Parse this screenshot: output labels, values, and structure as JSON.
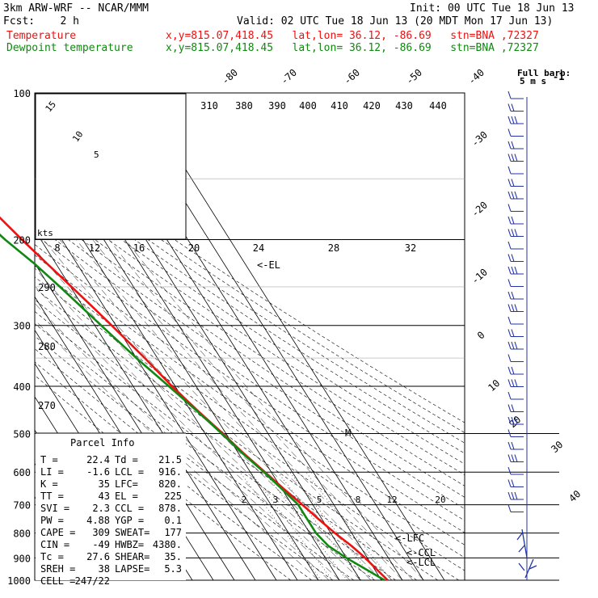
{
  "header": {
    "model": "3km ARW-WRF -- NCAR/MMM",
    "init": "Init: 00 UTC Tue 18 Jun 13",
    "fcst": "Fcst:    2 h",
    "valid": "Valid: 02 UTC Tue 18 Jun 13 (20 MDT Mon 17 Jun 13)",
    "temp_line": "Temperature",
    "temp_loc": "x,y=815.07,418.45   lat,lon= 36.12, -86.69   stn=BNA ,72327",
    "dew_line": "Dewpoint temperature",
    "dew_loc": "x,y=815.07,418.45   lat,lon= 36.12, -86.69   stn=BNA ,72327",
    "barb_label_1": "Full barb:",
    "barb_label_2": "5 m s",
    "barb_label_exp": "-1"
  },
  "colors": {
    "temperature": "#ee1111",
    "dewpoint": "#118811",
    "parcel_text": "#1a2fa0",
    "barbs": "#2233aa",
    "grid": "#000000"
  },
  "chart_data": {
    "type": "line",
    "title": "",
    "y_axis": {
      "label": "",
      "scale": "log-pressure",
      "ticks": [
        "100",
        "200",
        "300",
        "400",
        "500",
        "600",
        "700",
        "800",
        "900",
        "1000"
      ],
      "range": [
        1000,
        100
      ]
    },
    "isotherm_labels": [
      "-80",
      "-70",
      "-60",
      "-50",
      "-40",
      "-30",
      "-20",
      "-10",
      "0",
      "10",
      "20",
      "30",
      "40"
    ],
    "theta_e_labels": [
      "310",
      "380",
      "390",
      "400",
      "410",
      "420",
      "430",
      "440"
    ],
    "dry_adiabat_labels": [
      "290",
      "280",
      "270"
    ],
    "mixing_ratio_labels": [
      "2",
      "3",
      "5",
      "8",
      "12",
      "20"
    ],
    "hodograph": {
      "kts_label": "kts",
      "ring_labels": [
        "5",
        "10",
        "15"
      ],
      "speed_ticks": [
        "8",
        "12",
        "16",
        "20",
        "24",
        "28",
        "32"
      ]
    },
    "series": [
      {
        "name": "Temperature",
        "points": [
          [
            1000,
            23
          ],
          [
            950,
            21
          ],
          [
            900,
            19
          ],
          [
            850,
            16
          ],
          [
            800,
            12
          ],
          [
            750,
            8.5
          ],
          [
            700,
            5
          ],
          [
            650,
            1
          ],
          [
            600,
            -3
          ],
          [
            550,
            -7.5
          ],
          [
            500,
            -11.5
          ],
          [
            450,
            -16.5
          ],
          [
            400,
            -21.5
          ],
          [
            350,
            -26
          ],
          [
            300,
            -32
          ],
          [
            275,
            -35.5
          ],
          [
            250,
            -39.5
          ],
          [
            225,
            -44
          ],
          [
            200,
            -49
          ],
          [
            175,
            -54
          ],
          [
            150,
            -60
          ],
          [
            140,
            -62
          ],
          [
            125,
            -64
          ],
          [
            110,
            -64.5
          ],
          [
            100,
            -65
          ]
        ]
      },
      {
        "name": "Dewpoint temperature",
        "points": [
          [
            1000,
            21.5
          ],
          [
            950,
            16
          ],
          [
            900,
            10
          ],
          [
            850,
            5
          ],
          [
            800,
            3
          ],
          [
            750,
            3
          ],
          [
            700,
            3
          ],
          [
            650,
            0
          ],
          [
            600,
            -3.5
          ],
          [
            550,
            -8
          ],
          [
            500,
            -12
          ],
          [
            450,
            -17
          ],
          [
            400,
            -23
          ],
          [
            350,
            -30
          ],
          [
            300,
            -37
          ],
          [
            250,
            -45
          ],
          [
            225,
            -50
          ],
          [
            200,
            -57
          ],
          [
            175,
            -63
          ],
          [
            150,
            -69
          ],
          [
            125,
            -75
          ],
          [
            100,
            -81
          ]
        ]
      }
    ],
    "annotations": [
      "<-EL",
      "<-LFC",
      "<-CCL",
      "<-LCL",
      "M"
    ]
  },
  "parcel_info": {
    "title": "Parcel Info",
    "rows": [
      [
        "T  =",
        "22.4",
        "Td =",
        "21.5"
      ],
      [
        "LI =",
        "-1.6",
        "LCL =",
        "916."
      ],
      [
        "K  =",
        "35",
        "LFC=",
        "820."
      ],
      [
        "TT =",
        "43",
        "EL =",
        "225"
      ],
      [
        "SVI =",
        "2.3",
        "CCL =",
        "878."
      ],
      [
        "PW =",
        "4.88",
        "YGP =",
        "0.1"
      ],
      [
        "CAPE =",
        "309",
        "SWEAT=",
        "177"
      ],
      [
        "CIN =",
        "-49",
        "HWBZ=",
        "4380."
      ],
      [
        "Tc =",
        "27.6",
        "SHEAR=",
        "35."
      ],
      [
        "SREH =",
        "38",
        "LAPSE=",
        "5.3"
      ],
      [
        "CELL =",
        "247/22",
        "",
        ""
      ]
    ]
  }
}
